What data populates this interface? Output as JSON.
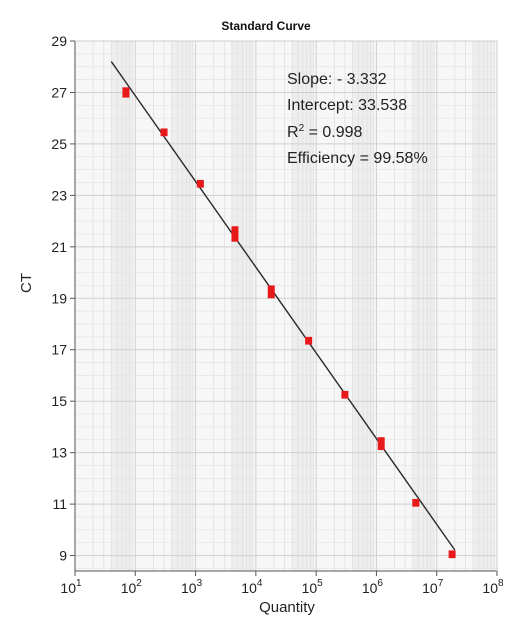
{
  "chart_data": {
    "type": "scatter",
    "title": "Standard Curve",
    "xlabel": "Quantity",
    "ylabel": "CT",
    "x_scale": "log",
    "xlim": [
      10,
      100000000
    ],
    "ylim": [
      8.4,
      29
    ],
    "x_ticks": [
      {
        "value": 10,
        "base": "10",
        "exp": "1"
      },
      {
        "value": 100,
        "base": "10",
        "exp": "2"
      },
      {
        "value": 1000,
        "base": "10",
        "exp": "3"
      },
      {
        "value": 10000,
        "base": "10",
        "exp": "4"
      },
      {
        "value": 100000,
        "base": "10",
        "exp": "5"
      },
      {
        "value": 1000000,
        "base": "10",
        "exp": "6"
      },
      {
        "value": 10000000,
        "base": "10",
        "exp": "7"
      },
      {
        "value": 100000000,
        "base": "10",
        "exp": "8"
      }
    ],
    "y_ticks": [
      "9",
      "11",
      "13",
      "15",
      "17",
      "19",
      "21",
      "23",
      "25",
      "27",
      "29"
    ],
    "grid": true,
    "marker_color": "#e8191b",
    "line_color": "#2a2a2a",
    "points": [
      {
        "x": 70,
        "y_min": 26.8,
        "y_max": 27.2
      },
      {
        "x": 300,
        "y_min": 25.3,
        "y_max": 25.6
      },
      {
        "x": 1200,
        "y_min": 23.3,
        "y_max": 23.6
      },
      {
        "x": 4500,
        "y_min": 21.2,
        "y_max": 21.8
      },
      {
        "x": 18000,
        "y_min": 19.0,
        "y_max": 19.5
      },
      {
        "x": 75000,
        "y_min": 17.2,
        "y_max": 17.5
      },
      {
        "x": 300000,
        "y_min": 15.1,
        "y_max": 15.4
      },
      {
        "x": 1200000,
        "y_min": 13.1,
        "y_max": 13.6
      },
      {
        "x": 4500000,
        "y_min": 10.9,
        "y_max": 11.2
      },
      {
        "x": 18000000,
        "y_min": 8.9,
        "y_max": 9.2
      }
    ],
    "fit_line": {
      "x_start": 40,
      "x_end": 20000000
    },
    "annotations": {
      "slope": "Slope: - 3.332",
      "intercept": "Intercept: 33.538",
      "r2_prefix": "R",
      "r2_sup": "2",
      "r2_suffix": " = 0.998",
      "efficiency": "Efficiency = 99.58%"
    },
    "slope_value": -3.332,
    "intercept_value": 33.538
  }
}
